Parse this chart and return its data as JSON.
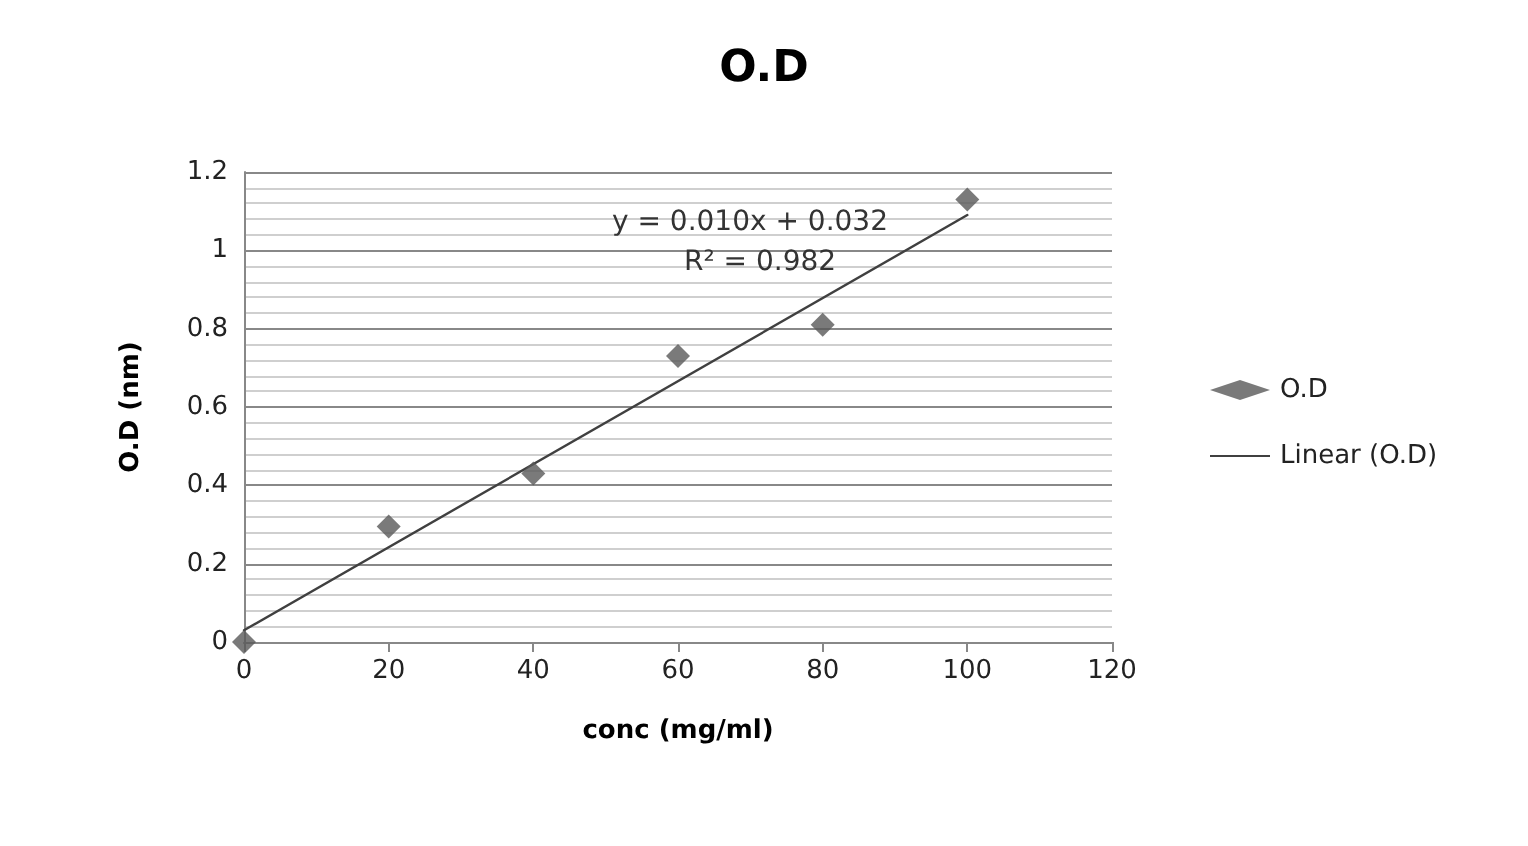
{
  "chart_data": {
    "type": "scatter",
    "title": "O.D",
    "xlabel": "conc (mg/ml)",
    "ylabel": "O.D (nm)",
    "x": [
      0,
      20,
      40,
      60,
      80,
      100
    ],
    "series": [
      {
        "name": "O.D",
        "color": "#595959",
        "values": [
          0,
          0.295,
          0.43,
          0.73,
          0.81,
          1.13
        ],
        "marker": "diamond"
      },
      {
        "name": "Linear (O.D)",
        "type": "line",
        "color": "#404040",
        "x": [
          0,
          100
        ],
        "values": [
          0.03,
          1.09
        ],
        "marker": "none",
        "line_style": "solid"
      }
    ],
    "annotations": [
      "y = 0.010x + 0.032",
      "R² = 0.982"
    ],
    "xlim": [
      0,
      120
    ],
    "xticks": [
      0,
      20,
      40,
      60,
      80,
      100,
      120
    ],
    "ylim": [
      0,
      1.2
    ],
    "yticks": [
      0,
      0.2,
      0.4,
      0.6,
      0.8,
      1,
      1.2
    ],
    "grid": "y",
    "legend": "right"
  }
}
